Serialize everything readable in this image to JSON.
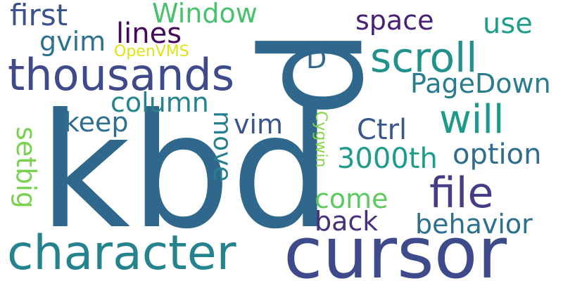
{
  "words": [
    {
      "id": "p",
      "text": "p",
      "color": "#30678d",
      "rotated": true
    },
    {
      "id": "kbd",
      "text": "kbd",
      "color": "#30678d",
      "rotated": false
    },
    {
      "id": "cursor",
      "text": "cursor",
      "color": "#3e4a89",
      "rotated": false
    },
    {
      "id": "character",
      "text": "character",
      "color": "#25838e",
      "rotated": false
    },
    {
      "id": "thousands",
      "text": "thousands",
      "color": "#3e4a89",
      "rotated": false
    },
    {
      "id": "file",
      "text": "file",
      "color": "#433e85",
      "rotated": false
    },
    {
      "id": "scroll",
      "text": "scroll",
      "color": "#21918c",
      "rotated": false
    },
    {
      "id": "will",
      "text": "will",
      "color": "#1f9a8a",
      "rotated": false
    },
    {
      "id": "lines",
      "text": "lines",
      "color": "#46085c",
      "rotated": false
    },
    {
      "id": "first",
      "text": "first",
      "color": "#3b518b",
      "rotated": false
    },
    {
      "id": "window",
      "text": "Window",
      "color": "#4ac16d",
      "rotated": false
    },
    {
      "id": "space",
      "text": "space",
      "color": "#482173",
      "rotated": false
    },
    {
      "id": "use",
      "text": "use",
      "color": "#1f9e89",
      "rotated": false
    },
    {
      "id": "gvim",
      "text": "gvim",
      "color": "#2c728e",
      "rotated": false
    },
    {
      "id": "openvms",
      "text": "OpenVMS",
      "color": "#dde318",
      "rotated": false
    },
    {
      "id": "d",
      "text": "D",
      "color": "#31688e",
      "rotated": false
    },
    {
      "id": "pagedown",
      "text": "PageDown",
      "color": "#287c8e",
      "rotated": false
    },
    {
      "id": "column",
      "text": "column",
      "color": "#25848e",
      "rotated": false
    },
    {
      "id": "keep",
      "text": "keep",
      "color": "#2e6e8e",
      "rotated": false
    },
    {
      "id": "vim",
      "text": "vim",
      "color": "#39568c",
      "rotated": false
    },
    {
      "id": "ctrl",
      "text": "Ctrl",
      "color": "#38588c",
      "rotated": false
    },
    {
      "id": "option",
      "text": "option",
      "color": "#2f6c8e",
      "rotated": false
    },
    {
      "id": "3000th",
      "text": "3000th",
      "color": "#1e9b8a",
      "rotated": false
    },
    {
      "id": "come",
      "text": "come",
      "color": "#5ec962",
      "rotated": false
    },
    {
      "id": "back",
      "text": "back",
      "color": "#46307e",
      "rotated": false
    },
    {
      "id": "behavior",
      "text": "behavior",
      "color": "#2d708e",
      "rotated": false
    },
    {
      "id": "move",
      "text": "move",
      "color": "#26818e",
      "rotated": true
    },
    {
      "id": "setbig",
      "text": "setbig",
      "color": "#7ad151",
      "rotated": true
    },
    {
      "id": "cygwin",
      "text": "Cygwin",
      "color": "#86d549",
      "rotated": true
    }
  ]
}
